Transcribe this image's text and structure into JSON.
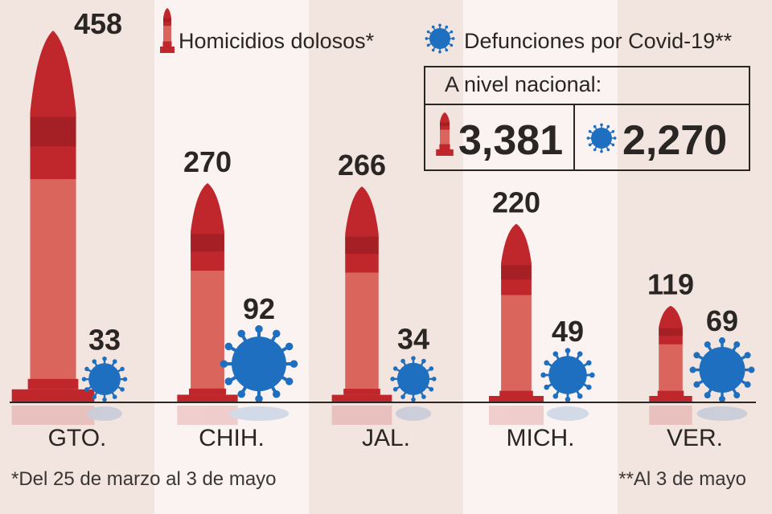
{
  "chart_data": {
    "type": "bar",
    "categories": [
      "GTO.",
      "CHIH.",
      "JAL.",
      "MICH.",
      "VER."
    ],
    "series": [
      {
        "name": "Homicidios dolosos*",
        "values": [
          458,
          270,
          266,
          220,
          119
        ],
        "color": "#c0272d",
        "icon": "bullet-icon"
      },
      {
        "name": "Defunciones por Covid-19**",
        "values": [
          33,
          92,
          34,
          49,
          69
        ],
        "color": "#1f6fc0",
        "icon": "virus-icon"
      }
    ],
    "value_labels": {
      "homicides": [
        "458",
        "270",
        "266",
        "220",
        "119"
      ],
      "covid": [
        "33",
        "92",
        "34",
        "49",
        "69"
      ]
    },
    "ylim": [
      0,
      470
    ],
    "grid": false,
    "legend_position": "top-right"
  },
  "national": {
    "title": "A nivel nacional:",
    "homicides": "3,381",
    "covid": "2,270"
  },
  "footnotes": {
    "homicides": "*Del 25 de marzo al 3 de mayo",
    "covid": "**Al 3 de mayo"
  },
  "colors": {
    "background_dark": "#f2e4df",
    "background_light": "#fbf3f1",
    "bullet_red": "#c0272d",
    "bullet_light": "#d9655d",
    "virus_blue": "#1f6fc0",
    "text": "#2a2623"
  }
}
